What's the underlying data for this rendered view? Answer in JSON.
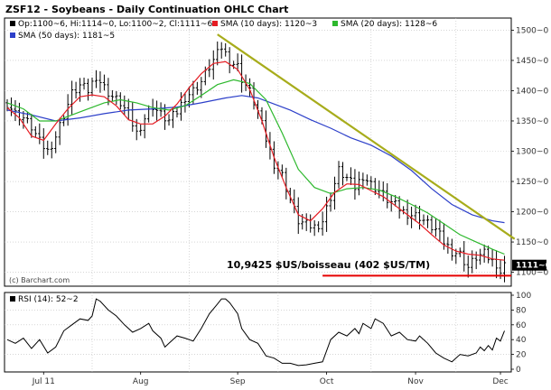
{
  "chart_data": {
    "type": "ohlc",
    "title": "ZSF12 - Soybeans - Daily Continuation OHLC Chart",
    "legend": {
      "ohlc": "Op:1100~6, Hi:1114~0, Lo:1100~2, Cl:1111~6",
      "sma10": "SMA (10 days): 1120~3",
      "sma20": "SMA (20 days): 1128~6",
      "sma50": "SMA (50 days): 1181~5"
    },
    "colors": {
      "bars": "#000000",
      "sma10": "#e51c23",
      "sma20": "#2db82d",
      "sma50": "#2c3fc9",
      "trendline": "#a7ac1b",
      "support": "#e60000",
      "frame": "#000000",
      "grid": "#bfbfbf"
    },
    "price_axis": {
      "ylim": [
        1077,
        1520
      ],
      "ticks": [
        "1500~0",
        "1450~0",
        "1400~0",
        "1350~0",
        "1300~0",
        "1250~0",
        "1200~0",
        "1150~0",
        "1100~0"
      ],
      "tick_values": [
        1500,
        1450,
        1400,
        1350,
        1300,
        1250,
        1200,
        1150,
        1100
      ]
    },
    "last_price_label": "1111~6",
    "last_price": 1111.75,
    "x_axis": {
      "range": [
        0,
        124
      ],
      "months": [
        {
          "label": "Jul 11",
          "x": 9
        },
        {
          "label": "Aug",
          "x": 33
        },
        {
          "label": "Sep",
          "x": 57
        },
        {
          "label": "Oct",
          "x": 79
        },
        {
          "label": "Nov",
          "x": 101
        },
        {
          "label": "Dec",
          "x": 122
        }
      ],
      "grid_x": [
        21,
        45,
        67,
        90,
        111
      ]
    },
    "annotation": "10,9425 $US/boisseau (402 $US/TM)",
    "support_level": 1094.25,
    "trendline": {
      "start": [
        52,
        1493
      ],
      "end": [
        139,
        1093
      ]
    },
    "copyright": "(c) Barchart.com",
    "rsi": {
      "label": "RSI (14): 52~2",
      "ylim": [
        0,
        100
      ],
      "ticks": [
        "100",
        "80",
        "60",
        "40",
        "20",
        "0"
      ],
      "tick_values": [
        100,
        80,
        60,
        40,
        20,
        0
      ],
      "points": [
        [
          0,
          40
        ],
        [
          2,
          35
        ],
        [
          4,
          42
        ],
        [
          6,
          28
        ],
        [
          8,
          40
        ],
        [
          10,
          22
        ],
        [
          12,
          30
        ],
        [
          14,
          52
        ],
        [
          16,
          60
        ],
        [
          18,
          68
        ],
        [
          20,
          66
        ],
        [
          21,
          72
        ],
        [
          22,
          95
        ],
        [
          23,
          92
        ],
        [
          25,
          80
        ],
        [
          27,
          72
        ],
        [
          29,
          60
        ],
        [
          31,
          50
        ],
        [
          33,
          55
        ],
        [
          35,
          62
        ],
        [
          36,
          52
        ],
        [
          38,
          42
        ],
        [
          39,
          30
        ],
        [
          40,
          35
        ],
        [
          42,
          45
        ],
        [
          44,
          42
        ],
        [
          46,
          38
        ],
        [
          48,
          55
        ],
        [
          50,
          75
        ],
        [
          52,
          88
        ],
        [
          53,
          95
        ],
        [
          54,
          95
        ],
        [
          55,
          90
        ],
        [
          57,
          75
        ],
        [
          58,
          55
        ],
        [
          60,
          40
        ],
        [
          62,
          35
        ],
        [
          64,
          18
        ],
        [
          66,
          15
        ],
        [
          68,
          8
        ],
        [
          70,
          8
        ],
        [
          72,
          5
        ],
        [
          74,
          6
        ],
        [
          76,
          8
        ],
        [
          78,
          10
        ],
        [
          80,
          40
        ],
        [
          82,
          50
        ],
        [
          84,
          45
        ],
        [
          86,
          55
        ],
        [
          87,
          48
        ],
        [
          88,
          62
        ],
        [
          90,
          55
        ],
        [
          91,
          68
        ],
        [
          93,
          62
        ],
        [
          95,
          45
        ],
        [
          97,
          50
        ],
        [
          99,
          40
        ],
        [
          101,
          38
        ],
        [
          102,
          45
        ],
        [
          104,
          35
        ],
        [
          106,
          22
        ],
        [
          108,
          15
        ],
        [
          110,
          10
        ],
        [
          112,
          20
        ],
        [
          114,
          18
        ],
        [
          116,
          22
        ],
        [
          117,
          30
        ],
        [
          118,
          25
        ],
        [
          119,
          32
        ],
        [
          120,
          26
        ],
        [
          121,
          42
        ],
        [
          122,
          38
        ],
        [
          123,
          52
        ]
      ]
    },
    "sma10": [
      [
        0,
        1372
      ],
      [
        3,
        1355
      ],
      [
        6,
        1325
      ],
      [
        9,
        1318
      ],
      [
        12,
        1345
      ],
      [
        15,
        1370
      ],
      [
        18,
        1390
      ],
      [
        21,
        1393
      ],
      [
        24,
        1390
      ],
      [
        27,
        1375
      ],
      [
        30,
        1352
      ],
      [
        33,
        1345
      ],
      [
        36,
        1345
      ],
      [
        39,
        1358
      ],
      [
        42,
        1378
      ],
      [
        45,
        1405
      ],
      [
        48,
        1428
      ],
      [
        51,
        1445
      ],
      [
        54,
        1448
      ],
      [
        57,
        1435
      ],
      [
        60,
        1402
      ],
      [
        63,
        1350
      ],
      [
        66,
        1290
      ],
      [
        69,
        1240
      ],
      [
        72,
        1195
      ],
      [
        75,
        1185
      ],
      [
        78,
        1205
      ],
      [
        81,
        1232
      ],
      [
        84,
        1246
      ],
      [
        87,
        1245
      ],
      [
        90,
        1235
      ],
      [
        93,
        1225
      ],
      [
        96,
        1210
      ],
      [
        99,
        1195
      ],
      [
        102,
        1180
      ],
      [
        105,
        1162
      ],
      [
        108,
        1145
      ],
      [
        111,
        1135
      ],
      [
        114,
        1130
      ],
      [
        117,
        1128
      ],
      [
        120,
        1122
      ],
      [
        123,
        1120
      ]
    ],
    "sma20": [
      [
        0,
        1380
      ],
      [
        4,
        1370
      ],
      [
        8,
        1350
      ],
      [
        12,
        1350
      ],
      [
        16,
        1360
      ],
      [
        20,
        1370
      ],
      [
        24,
        1380
      ],
      [
        28,
        1385
      ],
      [
        32,
        1380
      ],
      [
        36,
        1372
      ],
      [
        40,
        1368
      ],
      [
        44,
        1375
      ],
      [
        48,
        1392
      ],
      [
        52,
        1410
      ],
      [
        56,
        1418
      ],
      [
        60,
        1412
      ],
      [
        64,
        1385
      ],
      [
        68,
        1330
      ],
      [
        72,
        1270
      ],
      [
        76,
        1240
      ],
      [
        80,
        1230
      ],
      [
        84,
        1238
      ],
      [
        88,
        1240
      ],
      [
        92,
        1236
      ],
      [
        96,
        1225
      ],
      [
        100,
        1212
      ],
      [
        104,
        1198
      ],
      [
        108,
        1180
      ],
      [
        112,
        1162
      ],
      [
        116,
        1150
      ],
      [
        120,
        1138
      ],
      [
        123,
        1130
      ]
    ],
    "sma50": [
      [
        0,
        1368
      ],
      [
        6,
        1360
      ],
      [
        12,
        1350
      ],
      [
        18,
        1355
      ],
      [
        24,
        1362
      ],
      [
        30,
        1368
      ],
      [
        36,
        1370
      ],
      [
        42,
        1373
      ],
      [
        48,
        1380
      ],
      [
        54,
        1388
      ],
      [
        58,
        1392
      ],
      [
        62,
        1388
      ],
      [
        66,
        1378
      ],
      [
        70,
        1368
      ],
      [
        75,
        1352
      ],
      [
        80,
        1338
      ],
      [
        85,
        1322
      ],
      [
        90,
        1310
      ],
      [
        95,
        1292
      ],
      [
        100,
        1268
      ],
      [
        105,
        1238
      ],
      [
        110,
        1212
      ],
      [
        115,
        1195
      ],
      [
        120,
        1185
      ],
      [
        123,
        1182
      ]
    ],
    "close_path": [
      [
        0,
        1380
      ],
      [
        2,
        1362
      ],
      [
        4,
        1355
      ],
      [
        6,
        1340
      ],
      [
        8,
        1315
      ],
      [
        10,
        1300
      ],
      [
        12,
        1325
      ],
      [
        14,
        1360
      ],
      [
        16,
        1395
      ],
      [
        18,
        1408
      ],
      [
        20,
        1400
      ],
      [
        22,
        1425
      ],
      [
        24,
        1405
      ],
      [
        26,
        1390
      ],
      [
        28,
        1380
      ],
      [
        30,
        1360
      ],
      [
        32,
        1330
      ],
      [
        34,
        1355
      ],
      [
        36,
        1375
      ],
      [
        38,
        1360
      ],
      [
        40,
        1350
      ],
      [
        42,
        1365
      ],
      [
        44,
        1390
      ],
      [
        46,
        1400
      ],
      [
        48,
        1415
      ],
      [
        50,
        1440
      ],
      [
        52,
        1460
      ],
      [
        53,
        1472
      ],
      [
        55,
        1450
      ],
      [
        57,
        1440
      ],
      [
        58,
        1420
      ],
      [
        60,
        1398
      ],
      [
        62,
        1365
      ],
      [
        64,
        1320
      ],
      [
        66,
        1280
      ],
      [
        68,
        1260
      ],
      [
        70,
        1220
      ],
      [
        72,
        1185
      ],
      [
        74,
        1178
      ],
      [
        76,
        1175
      ],
      [
        78,
        1185
      ],
      [
        80,
        1225
      ],
      [
        82,
        1268
      ],
      [
        84,
        1255
      ],
      [
        86,
        1240
      ],
      [
        88,
        1260
      ],
      [
        90,
        1245
      ],
      [
        92,
        1235
      ],
      [
        94,
        1220
      ],
      [
        96,
        1210
      ],
      [
        98,
        1200
      ],
      [
        100,
        1195
      ],
      [
        102,
        1192
      ],
      [
        104,
        1180
      ],
      [
        106,
        1170
      ],
      [
        108,
        1150
      ],
      [
        110,
        1135
      ],
      [
        112,
        1130
      ],
      [
        114,
        1108
      ],
      [
        116,
        1125
      ],
      [
        118,
        1130
      ],
      [
        120,
        1118
      ],
      [
        121,
        1115
      ],
      [
        122,
        1100
      ],
      [
        123,
        1111
      ]
    ],
    "ohlc_bar_ticks": [
      1,
      1,
      -1
    ]
  }
}
